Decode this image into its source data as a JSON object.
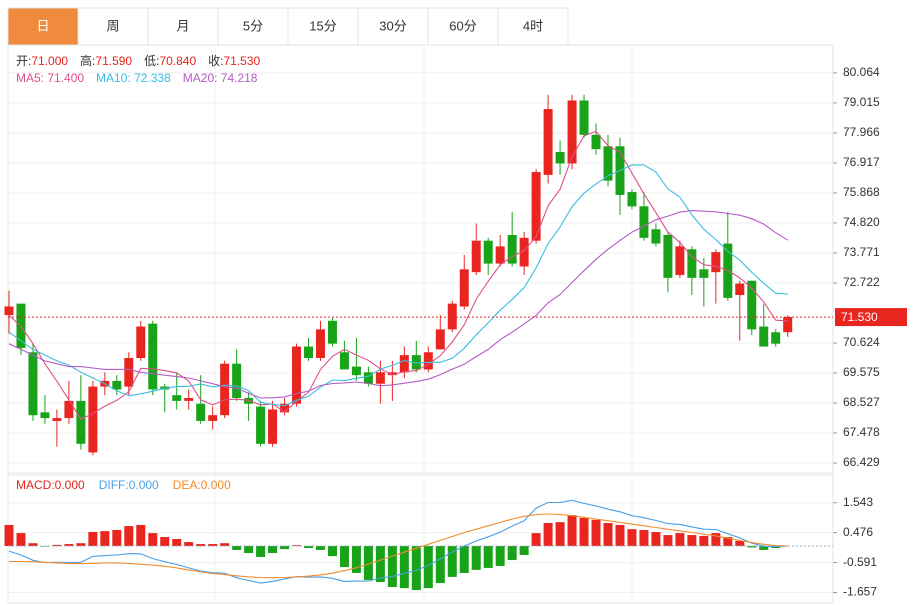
{
  "tabs": [
    "日",
    "周",
    "月",
    "5分",
    "15分",
    "30分",
    "60分",
    "4时"
  ],
  "active_tab": 0,
  "chart_data": [
    {
      "type": "candlestick",
      "info": [
        {
          "label": "开:",
          "value": "71.000"
        },
        {
          "label": "高:",
          "value": "71.590"
        },
        {
          "label": "低:",
          "value": "70.840"
        },
        {
          "label": "收:",
          "value": "71.530"
        }
      ],
      "up_color": "#e8251e",
      "down_color": "#19a319",
      "open": [
        71.6,
        72.0,
        70.3,
        68.2,
        67.9,
        68.0,
        68.6,
        66.8,
        69.1,
        69.3,
        69.1,
        70.1,
        71.3,
        69.1,
        68.8,
        68.6,
        68.5,
        67.9,
        68.1,
        69.9,
        68.7,
        68.4,
        67.1,
        68.2,
        68.5,
        70.5,
        70.1,
        71.4,
        70.3,
        69.8,
        69.6,
        69.2,
        69.5,
        69.6,
        70.2,
        69.7,
        70.4,
        71.1,
        71.9,
        73.1,
        74.2,
        73.4,
        74.4,
        73.3,
        74.2,
        76.5,
        77.3,
        76.9,
        79.1,
        77.9,
        77.5,
        77.5,
        75.9,
        75.4,
        74.6,
        74.4,
        73.0,
        73.9,
        73.2,
        73.1,
        74.1,
        72.3,
        72.8,
        71.2,
        71.0,
        71.0
      ],
      "high": [
        72.45,
        72.0,
        70.6,
        68.8,
        68.3,
        69.3,
        69.5,
        69.3,
        69.6,
        69.5,
        70.3,
        71.4,
        71.4,
        69.2,
        69.6,
        69.0,
        69.5,
        68.4,
        70.0,
        70.4,
        68.9,
        68.6,
        68.6,
        68.7,
        70.6,
        70.8,
        71.4,
        71.5,
        70.7,
        70.8,
        69.8,
        70.0,
        70.0,
        70.5,
        70.7,
        70.5,
        71.6,
        72.1,
        73.7,
        74.8,
        74.3,
        74.4,
        75.2,
        74.5,
        76.7,
        79.3,
        77.7,
        79.3,
        79.3,
        78.3,
        77.9,
        77.8,
        76.0,
        75.9,
        74.8,
        74.5,
        74.2,
        74.0,
        73.6,
        73.9,
        75.2,
        72.8,
        72.8,
        72.0,
        71.1,
        71.59
      ],
      "low": [
        70.95,
        70.2,
        67.9,
        67.8,
        67.0,
        67.8,
        66.9,
        66.7,
        68.8,
        68.8,
        68.8,
        70.0,
        68.8,
        68.2,
        68.3,
        68.3,
        67.8,
        67.6,
        68.0,
        68.6,
        67.9,
        67.0,
        67.0,
        68.1,
        68.4,
        70.0,
        70.0,
        70.5,
        69.7,
        69.3,
        69.1,
        68.5,
        68.6,
        69.4,
        69.6,
        69.6,
        70.4,
        71.0,
        71.8,
        73.0,
        73.0,
        73.3,
        73.3,
        73.0,
        74.1,
        76.2,
        76.5,
        76.7,
        77.8,
        77.2,
        76.1,
        75.1,
        75.3,
        74.2,
        74.0,
        72.4,
        72.9,
        72.3,
        71.9,
        72.0,
        72.1,
        70.7,
        70.9,
        70.5,
        70.5,
        70.84
      ],
      "close": [
        71.9,
        70.45,
        68.1,
        68.0,
        68.0,
        68.6,
        67.1,
        69.1,
        69.3,
        69.0,
        70.1,
        71.2,
        69.0,
        69.0,
        68.6,
        68.7,
        67.9,
        68.1,
        69.9,
        68.7,
        68.5,
        67.1,
        68.3,
        68.5,
        70.5,
        70.1,
        71.1,
        70.6,
        69.7,
        69.5,
        69.2,
        69.6,
        69.6,
        70.2,
        69.7,
        70.3,
        71.1,
        72.0,
        73.2,
        74.2,
        73.4,
        74.0,
        73.4,
        74.3,
        76.6,
        78.8,
        76.9,
        79.1,
        77.9,
        77.4,
        76.3,
        75.8,
        75.4,
        74.3,
        74.1,
        72.9,
        74.0,
        72.9,
        72.9,
        73.8,
        72.2,
        72.7,
        71.1,
        70.5,
        70.6,
        71.53
      ],
      "lines": [
        {
          "legend": "MA5: 71.400",
          "color": "#e0508a",
          "values": [
            71.6,
            71.2,
            70.6,
            69.9,
            69.29,
            68.63,
            67.96,
            68.16,
            68.42,
            68.62,
            68.92,
            69.74,
            69.72,
            69.66,
            69.58,
            69.3,
            68.64,
            68.46,
            68.64,
            68.66,
            68.62,
            68.46,
            68.5,
            68.22,
            68.58,
            68.9,
            69.7,
            70.16,
            70.4,
            70.2,
            70.02,
            69.72,
            69.52,
            69.62,
            69.66,
            69.88,
            70.18,
            70.66,
            71.26,
            72.16,
            72.78,
            73.36,
            73.64,
            73.86,
            74.34,
            75.42,
            76.0,
            77.14,
            77.86,
            78.02,
            77.52,
            77.3,
            76.56,
            75.84,
            75.18,
            74.5,
            74.14,
            73.64,
            73.36,
            73.3,
            73.16,
            72.9,
            72.54,
            72.06,
            71.42,
            71.4
          ]
        },
        {
          "legend": "MA10: 72.338",
          "color": "#3bbde0",
          "values": [
            71.0,
            70.7,
            70.4,
            70.2,
            70.0,
            69.85,
            69.6,
            69.4,
            69.2,
            68.96,
            68.78,
            68.85,
            68.94,
            69.04,
            69.1,
            69.11,
            69.19,
            69.09,
            69.15,
            69.12,
            68.96,
            68.55,
            68.48,
            68.43,
            68.62,
            68.76,
            69.08,
            69.33,
            69.31,
            69.39,
            69.46,
            69.71,
            69.84,
            70.01,
            69.93,
            69.95,
            69.95,
            70.09,
            70.44,
            70.91,
            71.33,
            71.77,
            72.15,
            72.56,
            73.25,
            74.1,
            74.68,
            75.39,
            75.86,
            76.18,
            76.47,
            76.65,
            76.85,
            76.85,
            76.6,
            76.01,
            75.72,
            75.1,
            74.6,
            74.24,
            73.83,
            73.52,
            73.09,
            72.71,
            72.36,
            72.338
          ]
        },
        {
          "legend": "MA20: 74.218",
          "color": "#b35cc7",
          "values": [
            70.6,
            70.4,
            70.2,
            70.0,
            69.9,
            69.8,
            69.8,
            69.75,
            69.7,
            69.7,
            69.7,
            69.6,
            69.55,
            69.5,
            69.45,
            69.4,
            69.3,
            69.2,
            69.1,
            69.04,
            68.87,
            68.7,
            68.71,
            68.74,
            68.86,
            68.94,
            69.14,
            69.21,
            69.23,
            69.26,
            69.21,
            69.13,
            69.16,
            69.22,
            69.28,
            69.36,
            69.52,
            69.71,
            69.88,
            70.15,
            70.4,
            70.74,
            71.0,
            71.29,
            71.59,
            72.03,
            72.32,
            72.74,
            73.15,
            73.55,
            73.9,
            74.21,
            74.5,
            74.71,
            74.93,
            75.06,
            75.2,
            75.25,
            75.23,
            75.21,
            75.15,
            75.09,
            74.97,
            74.78,
            74.48,
            74.218
          ]
        }
      ],
      "last_price": {
        "value": 71.53,
        "label": "71.530"
      },
      "ylim": [
        66.08,
        81.04
      ],
      "yticks": [
        80.064,
        79.015,
        77.966,
        76.917,
        75.868,
        {
          "value": 74.82,
          "label": "74.820"
        },
        73.771,
        72.722,
        70.624,
        69.575,
        68.527,
        67.478,
        66.429
      ],
      "grid": true
    },
    {
      "type": "macd",
      "histogram": {
        "legend": "MACD:0.000",
        "up_color": "#e8251e",
        "down_color": "#19a319",
        "values": [
          0.75,
          0.46,
          0.1,
          -0.02,
          0.04,
          0.07,
          0.1,
          0.5,
          0.53,
          0.57,
          0.71,
          0.75,
          0.46,
          0.32,
          0.25,
          0.14,
          0.07,
          0.07,
          0.1,
          -0.14,
          -0.25,
          -0.39,
          -0.25,
          -0.11,
          0.03,
          -0.07,
          -0.14,
          -0.36,
          -0.75,
          -0.96,
          -1.21,
          -1.28,
          -1.46,
          -1.5,
          -1.57,
          -1.5,
          -1.32,
          -1.1,
          -0.96,
          -0.85,
          -0.78,
          -0.71,
          -0.5,
          -0.32,
          0.46,
          0.82,
          0.85,
          1.1,
          1.0,
          0.93,
          0.82,
          0.75,
          0.6,
          0.57,
          0.5,
          0.39,
          0.46,
          0.39,
          0.36,
          0.46,
          0.32,
          0.18,
          -0.05,
          -0.14,
          -0.07,
          0
        ]
      },
      "lines": [
        {
          "legend": "DIFF:0.000",
          "color": "#4a9fe6",
          "values": [
            -0.18,
            -0.32,
            -0.51,
            -0.59,
            -0.58,
            -0.59,
            -0.58,
            -0.37,
            -0.34,
            -0.32,
            -0.27,
            -0.28,
            -0.45,
            -0.56,
            -0.66,
            -0.78,
            -0.89,
            -0.95,
            -0.97,
            -1.13,
            -1.23,
            -1.32,
            -1.26,
            -1.18,
            -1.09,
            -1.11,
            -1.1,
            -1.15,
            -1.26,
            -1.25,
            -1.25,
            -1.14,
            -1.09,
            -0.97,
            -0.87,
            -0.69,
            -0.46,
            -0.21,
            0,
            0.18,
            0.33,
            0.49,
            0.71,
            0.9,
            1.35,
            1.55,
            1.55,
            1.63,
            1.52,
            1.43,
            1.31,
            1.22,
            1.08,
            1.01,
            0.91,
            0.8,
            0.77,
            0.68,
            0.6,
            0.59,
            0.44,
            0.29,
            0.1,
            -0.01,
            -0.02,
            0
          ]
        },
        {
          "legend": "DEA:0.000",
          "color": "#f08c2c",
          "values": [
            -0.55,
            -0.55,
            -0.56,
            -0.58,
            -0.6,
            -0.62,
            -0.63,
            -0.62,
            -0.6,
            -0.6,
            -0.62,
            -0.65,
            -0.68,
            -0.72,
            -0.78,
            -0.85,
            -0.92,
            -0.98,
            -1.02,
            -1.06,
            -1.1,
            -1.12,
            -1.13,
            -1.12,
            -1.1,
            -1.07,
            -1.03,
            -0.97,
            -0.88,
            -0.77,
            -0.64,
            -0.5,
            -0.36,
            -0.22,
            -0.08,
            0.06,
            0.2,
            0.34,
            0.48,
            0.6,
            0.72,
            0.84,
            0.96,
            1.06,
            1.12,
            1.14,
            1.12,
            1.08,
            1.02,
            0.96,
            0.9,
            0.84,
            0.78,
            0.72,
            0.66,
            0.6,
            0.54,
            0.48,
            0.42,
            0.36,
            0.28,
            0.2,
            0.12,
            0.06,
            0.02,
            0
          ]
        }
      ],
      "ylim": [
        -2.03,
        2.53
      ],
      "yticks": [
        1.543,
        0.476,
        -0.591,
        -1.657
      ]
    }
  ]
}
